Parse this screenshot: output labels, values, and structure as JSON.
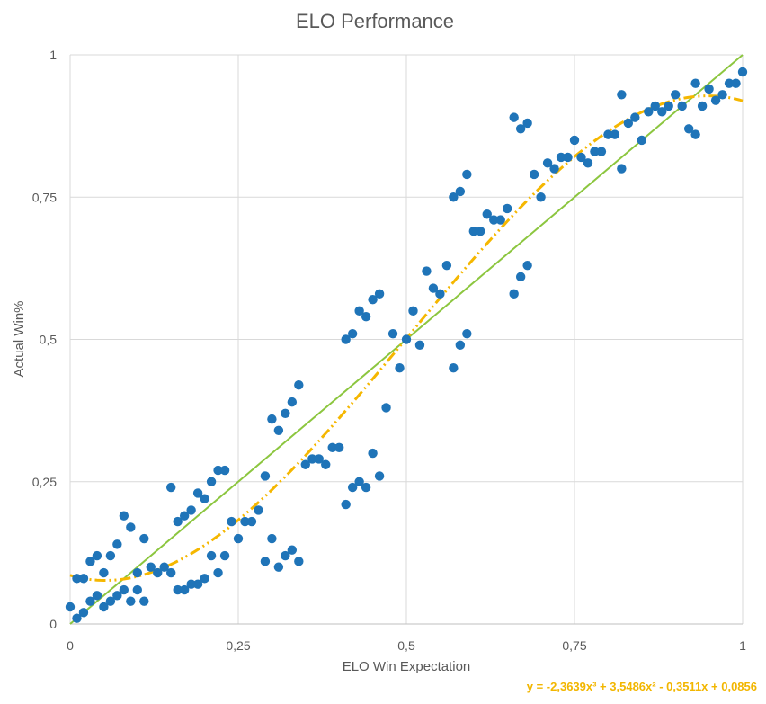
{
  "chart_data": {
    "type": "scatter",
    "title": "ELO Performance",
    "xlabel": "ELO Win Expectation",
    "ylabel": "Actual Win%",
    "xlim": [
      0,
      1
    ],
    "ylim": [
      0,
      1
    ],
    "x_ticks": [
      "0",
      "0,25",
      "0,5",
      "0,75",
      "1"
    ],
    "y_ticks": [
      "0",
      "0,25",
      "0,5",
      "0,75",
      "1"
    ],
    "grid": true,
    "reference_line": {
      "x": [
        0,
        1
      ],
      "y": [
        0,
        1
      ],
      "color": "#8cc63f"
    },
    "trendline": {
      "equation": "y = -2,3639x³ + 3,5486x² - 0,3511x + 0,0856",
      "coefficients": [
        -2.3639,
        3.5486,
        -0.3511,
        0.0856
      ],
      "color": "#f5b700"
    },
    "series": [
      {
        "color": "#1f74b8",
        "x": [
          0.0,
          0.01,
          0.01,
          0.02,
          0.02,
          0.03,
          0.03,
          0.04,
          0.04,
          0.05,
          0.05,
          0.06,
          0.06,
          0.07,
          0.07,
          0.08,
          0.08,
          0.09,
          0.09,
          0.1,
          0.1,
          0.11,
          0.11,
          0.12,
          0.13,
          0.14,
          0.15,
          0.15,
          0.16,
          0.16,
          0.17,
          0.17,
          0.18,
          0.18,
          0.19,
          0.19,
          0.2,
          0.2,
          0.21,
          0.21,
          0.22,
          0.22,
          0.23,
          0.23,
          0.24,
          0.25,
          0.26,
          0.27,
          0.28,
          0.29,
          0.29,
          0.3,
          0.3,
          0.31,
          0.31,
          0.32,
          0.32,
          0.33,
          0.33,
          0.34,
          0.34,
          0.35,
          0.36,
          0.37,
          0.38,
          0.39,
          0.4,
          0.41,
          0.41,
          0.42,
          0.42,
          0.43,
          0.43,
          0.44,
          0.44,
          0.45,
          0.45,
          0.46,
          0.46,
          0.47,
          0.48,
          0.49,
          0.5,
          0.51,
          0.52,
          0.53,
          0.54,
          0.55,
          0.56,
          0.57,
          0.57,
          0.58,
          0.58,
          0.59,
          0.59,
          0.6,
          0.61,
          0.62,
          0.63,
          0.64,
          0.65,
          0.66,
          0.66,
          0.67,
          0.67,
          0.68,
          0.68,
          0.69,
          0.7,
          0.71,
          0.72,
          0.73,
          0.74,
          0.75,
          0.76,
          0.77,
          0.78,
          0.79,
          0.8,
          0.81,
          0.82,
          0.82,
          0.83,
          0.84,
          0.85,
          0.86,
          0.87,
          0.88,
          0.89,
          0.9,
          0.91,
          0.92,
          0.93,
          0.93,
          0.94,
          0.95,
          0.96,
          0.97,
          0.98,
          0.99,
          1.0
        ],
        "y": [
          0.03,
          0.01,
          0.08,
          0.02,
          0.08,
          0.04,
          0.11,
          0.05,
          0.12,
          0.03,
          0.09,
          0.04,
          0.12,
          0.05,
          0.14,
          0.06,
          0.19,
          0.04,
          0.17,
          0.06,
          0.09,
          0.04,
          0.15,
          0.1,
          0.09,
          0.1,
          0.09,
          0.24,
          0.06,
          0.18,
          0.06,
          0.19,
          0.07,
          0.2,
          0.07,
          0.23,
          0.08,
          0.22,
          0.12,
          0.25,
          0.09,
          0.27,
          0.12,
          0.27,
          0.18,
          0.15,
          0.18,
          0.18,
          0.2,
          0.11,
          0.26,
          0.15,
          0.36,
          0.1,
          0.34,
          0.12,
          0.37,
          0.13,
          0.39,
          0.11,
          0.42,
          0.28,
          0.29,
          0.29,
          0.28,
          0.31,
          0.31,
          0.21,
          0.5,
          0.24,
          0.51,
          0.25,
          0.55,
          0.24,
          0.54,
          0.3,
          0.57,
          0.26,
          0.58,
          0.38,
          0.51,
          0.45,
          0.5,
          0.55,
          0.49,
          0.62,
          0.59,
          0.58,
          0.63,
          0.45,
          0.75,
          0.49,
          0.76,
          0.51,
          0.79,
          0.69,
          0.69,
          0.72,
          0.71,
          0.71,
          0.73,
          0.58,
          0.89,
          0.61,
          0.87,
          0.63,
          0.88,
          0.79,
          0.75,
          0.81,
          0.8,
          0.82,
          0.82,
          0.85,
          0.82,
          0.81,
          0.83,
          0.83,
          0.86,
          0.86,
          0.8,
          0.93,
          0.88,
          0.89,
          0.85,
          0.9,
          0.91,
          0.9,
          0.91,
          0.93,
          0.91,
          0.87,
          0.86,
          0.95,
          0.91,
          0.94,
          0.92,
          0.93,
          0.95,
          0.95,
          0.97
        ]
      }
    ]
  }
}
